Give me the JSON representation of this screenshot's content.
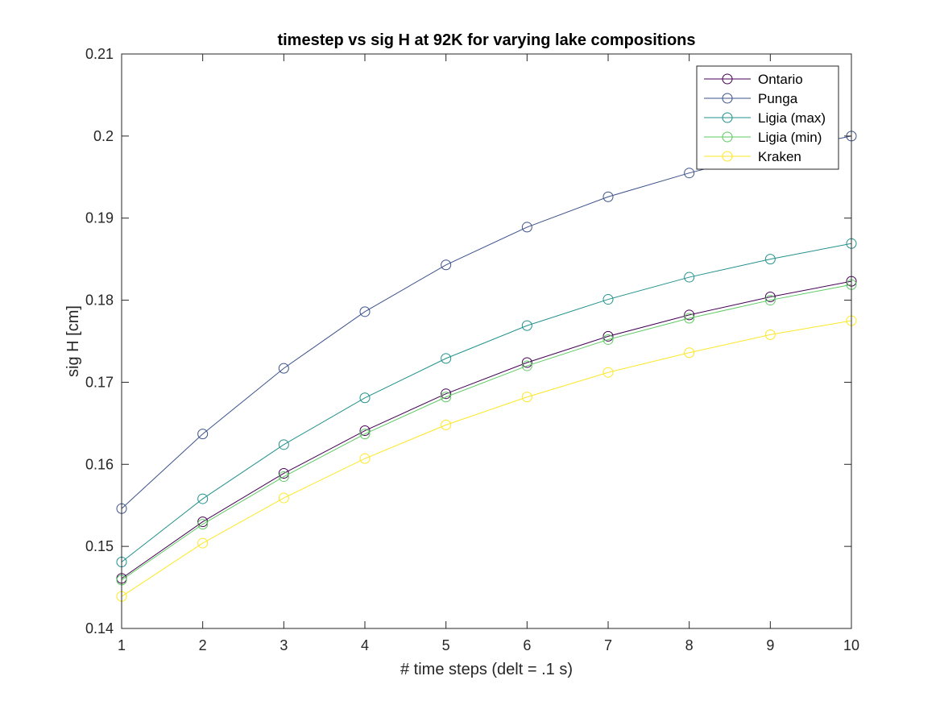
{
  "chart_data": {
    "type": "line",
    "title": "timestep vs sig H at 92K for varying lake compositions",
    "xlabel": "# time steps (delt = .1 s)",
    "ylabel": "sig H [cm]",
    "xlim": [
      1,
      10
    ],
    "ylim": [
      0.14,
      0.21
    ],
    "xticks": [
      "1",
      "2",
      "3",
      "4",
      "5",
      "6",
      "7",
      "8",
      "9",
      "10"
    ],
    "yticks": [
      "0.14",
      "0.15",
      "0.16",
      "0.17",
      "0.18",
      "0.19",
      "0.2",
      "0.21"
    ],
    "grid": false,
    "legend_location": "top-right",
    "marker": "circle",
    "x": [
      1,
      2,
      3,
      4,
      5,
      6,
      7,
      8,
      9,
      10
    ],
    "series": [
      {
        "name": "Ontario",
        "color": "#440154",
        "values": [
          0.1461,
          0.153,
          0.1589,
          0.1641,
          0.1686,
          0.1724,
          0.1756,
          0.1782,
          0.1804,
          0.1823
        ]
      },
      {
        "name": "Punga",
        "color": "#3b528b",
        "values": [
          0.1546,
          0.1637,
          0.1717,
          0.1786,
          0.1843,
          0.1889,
          0.1926,
          0.1955,
          0.198,
          0.2
        ]
      },
      {
        "name": "Ligia (max)",
        "color": "#21918c",
        "values": [
          0.1481,
          0.1558,
          0.1624,
          0.1681,
          0.1729,
          0.1769,
          0.1801,
          0.1828,
          0.185,
          0.1869
        ]
      },
      {
        "name": "Ligia (min)",
        "color": "#5ec962",
        "values": [
          0.1459,
          0.1527,
          0.1585,
          0.1637,
          0.1682,
          0.172,
          0.1752,
          0.1778,
          0.18,
          0.1819
        ]
      },
      {
        "name": "Kraken",
        "color": "#fde725",
        "values": [
          0.1439,
          0.1504,
          0.1559,
          0.1607,
          0.1648,
          0.1682,
          0.1712,
          0.1736,
          0.1758,
          0.1775
        ]
      }
    ]
  }
}
